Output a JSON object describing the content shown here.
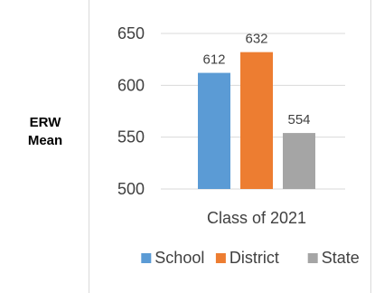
{
  "chart_data": {
    "type": "bar",
    "ylabel_lines": [
      "ERW",
      "Mean"
    ],
    "categories": [
      "Class of 2021"
    ],
    "series": [
      {
        "name": "School",
        "values": [
          612
        ],
        "color": "#5b9bd5"
      },
      {
        "name": "District",
        "values": [
          632
        ],
        "color": "#ed7d31"
      },
      {
        "name": "State",
        "values": [
          554
        ],
        "color": "#a5a5a5"
      }
    ],
    "ylim": [
      500,
      650
    ],
    "yticks": [
      500,
      550,
      600,
      650
    ],
    "grid": true,
    "legend_position": "bottom",
    "data_labels": true
  }
}
